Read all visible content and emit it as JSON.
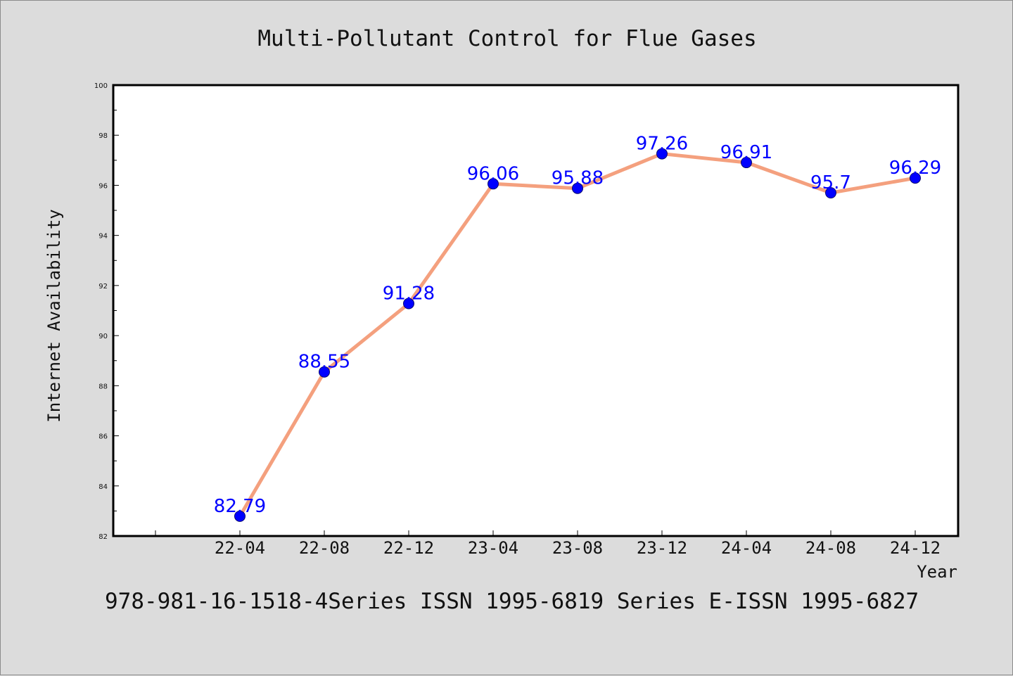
{
  "chart_data": {
    "type": "line",
    "title": "Multi-Pollutant Control for Flue Gases",
    "xlabel": "Year",
    "ylabel": "Internet Availability",
    "categories": [
      "22-04",
      "22-08",
      "22-12",
      "23-04",
      "23-08",
      "23-12",
      "24-04",
      "24-08",
      "24-12"
    ],
    "series": [
      {
        "values": [
          82.79,
          88.55,
          91.28,
          96.06,
          95.88,
          97.26,
          96.91,
          95.7,
          96.29
        ],
        "labels": [
          "82.79",
          "88.55",
          "91.28",
          "96.06",
          "95.88",
          "97.26",
          "96.91",
          "95.7",
          "96.29"
        ]
      }
    ],
    "ylim": [
      82,
      100
    ],
    "yticks": [
      "82",
      "84",
      "86",
      "88",
      "90",
      "92",
      "94",
      "96",
      "98",
      "100"
    ],
    "grid": false,
    "legend": "none",
    "colors": {
      "line": "#f4a07e",
      "marker": "#0000ff",
      "marker_edge": "#0a0a6e",
      "data_label": "#0000ff",
      "plot_background": "#ffffff",
      "figure_background": "#dcdcdc"
    }
  },
  "footer": {
    "text": "978-981-16-1518-4Series ISSN 1995-6819 Series E-ISSN 1995-6827"
  }
}
